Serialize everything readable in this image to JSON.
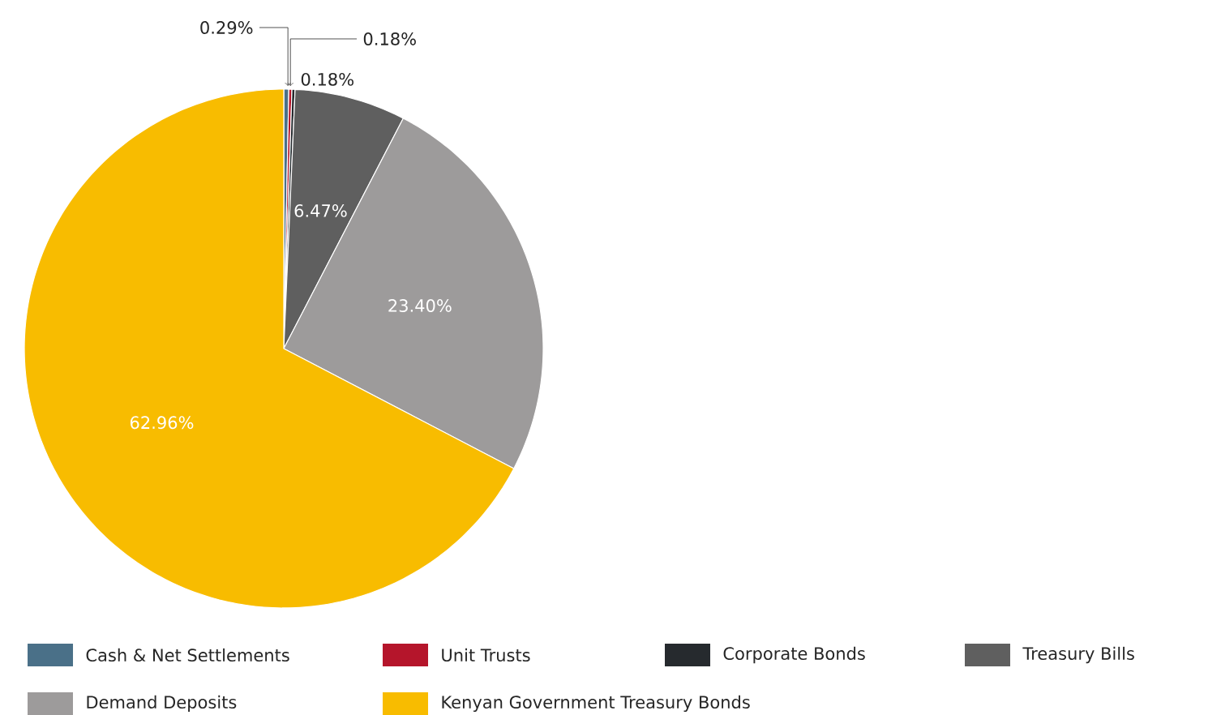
{
  "chart_data": {
    "type": "pie",
    "categories": [
      "Cash & Net Settlements",
      "Unit Trusts",
      "Corporate Bonds",
      "Treasury Bills",
      "Demand Deposits",
      "Kenyan Government Treasury Bonds"
    ],
    "values": [
      0.29,
      0.18,
      0.18,
      6.47,
      23.4,
      62.96
    ],
    "value_labels": [
      "0.29%",
      "0.18%",
      "0.18%",
      "6.47%",
      "23.40%",
      "62.96%"
    ],
    "colors": [
      "#4a7088",
      "#b5152b",
      "#262a2e",
      "#5f5f5f",
      "#9d9b9b",
      "#f8bc00"
    ],
    "legend": "bottom"
  }
}
